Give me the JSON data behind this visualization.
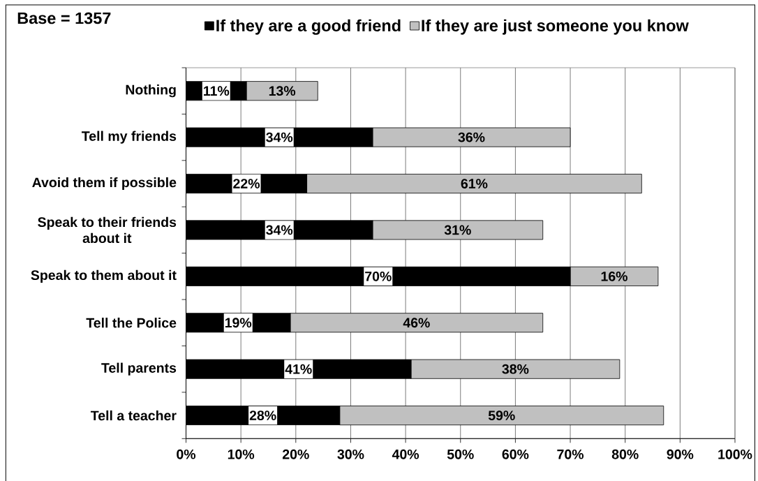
{
  "chart_data": {
    "type": "bar",
    "orientation": "horizontal",
    "stacked": true,
    "categories": [
      "Nothing",
      "Tell my friends",
      "Avoid them if possible",
      "Speak to their friends about it",
      "Speak to them about it",
      "Tell the Police",
      "Tell parents",
      "Tell a teacher"
    ],
    "series": [
      {
        "name": "If they are a good friend",
        "color": "#000000",
        "values": [
          11,
          34,
          22,
          34,
          70,
          19,
          41,
          28
        ],
        "value_labels": [
          "11%",
          "34%",
          "22%",
          "34%",
          "70%",
          "19%",
          "41%",
          "28%"
        ]
      },
      {
        "name": "If they are just someone you know",
        "color": "#c0c0c0",
        "values": [
          13,
          36,
          61,
          31,
          16,
          46,
          38,
          59
        ],
        "value_labels": [
          "13%",
          "36%",
          "61%",
          "31%",
          "16%",
          "46%",
          "38%",
          "59%"
        ]
      }
    ],
    "xlim": [
      0,
      100
    ],
    "xticks": [
      {
        "value": 0,
        "label": "0%"
      },
      {
        "value": 10,
        "label": "10%"
      },
      {
        "value": 20,
        "label": "20%"
      },
      {
        "value": 30,
        "label": "30%"
      },
      {
        "value": 40,
        "label": "40%"
      },
      {
        "value": 50,
        "label": "50%"
      },
      {
        "value": 60,
        "label": "60%"
      },
      {
        "value": 70,
        "label": "70%"
      },
      {
        "value": 80,
        "label": "80%"
      },
      {
        "value": 90,
        "label": "90%"
      },
      {
        "value": 100,
        "label": "100%"
      }
    ],
    "grid": "x",
    "legend": "top",
    "annotations": [
      "Base = 1357"
    ]
  }
}
